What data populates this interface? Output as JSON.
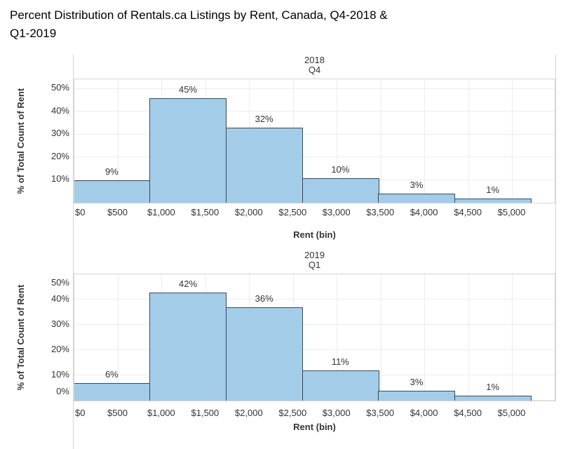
{
  "title": "Percent Distribution of Rentals.ca Listings by Rent, Canada, Q4-2018 & Q1-2019",
  "title_lines": [
    "Percent Distribution of Rentals.ca Listings by Rent, Canada, Q4-2018 &",
    "Q1-2019"
  ],
  "colors": {
    "bar_fill": "#a3cce9",
    "bar_border": "#3b4a54",
    "gridline": "#ececec",
    "pane_border": "#d4d4d4",
    "axis_text": "#333333",
    "title_text": "#000000"
  },
  "chart_data": [
    {
      "type": "bar",
      "panel_title": "2018 Q4",
      "header_lines": [
        "2018",
        "Q4"
      ],
      "xlabel": "Rent (bin)",
      "ylabel": "% of Total Count of Rent",
      "x_ticks": [
        "$0",
        "$500",
        "$1,000",
        "$1,500",
        "$2,000",
        "$2,500",
        "$3,000",
        "$3,500",
        "$4,000",
        "$4,500",
        "$5,000"
      ],
      "y_ticks": [
        "50%",
        "40%",
        "30%",
        "20%",
        "10%"
      ],
      "values": [
        9,
        45,
        32,
        10,
        3,
        1
      ],
      "bar_labels": [
        "9%",
        "45%",
        "32%",
        "10%",
        "3%",
        "1%"
      ],
      "ylim": [
        -1,
        54
      ],
      "grid": true,
      "legend": false
    },
    {
      "type": "bar",
      "panel_title": "2019 Q1",
      "header_lines": [
        "2019",
        "Q1"
      ],
      "xlabel": "Rent (bin)",
      "ylabel": "% of Total Count of Rent",
      "x_ticks": [
        "$0",
        "$500",
        "$1,000",
        "$1,500",
        "$2,000",
        "$2,500",
        "$3,000",
        "$3,500",
        "$4,000",
        "$4,500",
        "$5,000"
      ],
      "y_ticks": [
        "50%",
        "40%",
        "30%",
        "20%",
        "10%",
        "0%"
      ],
      "values": [
        6,
        42,
        36,
        11,
        3,
        1
      ],
      "bar_labels": [
        "6%",
        "42%",
        "36%",
        "11%",
        "3%",
        "1%"
      ],
      "ylim": [
        -1,
        50
      ],
      "grid": true,
      "legend": false
    }
  ]
}
